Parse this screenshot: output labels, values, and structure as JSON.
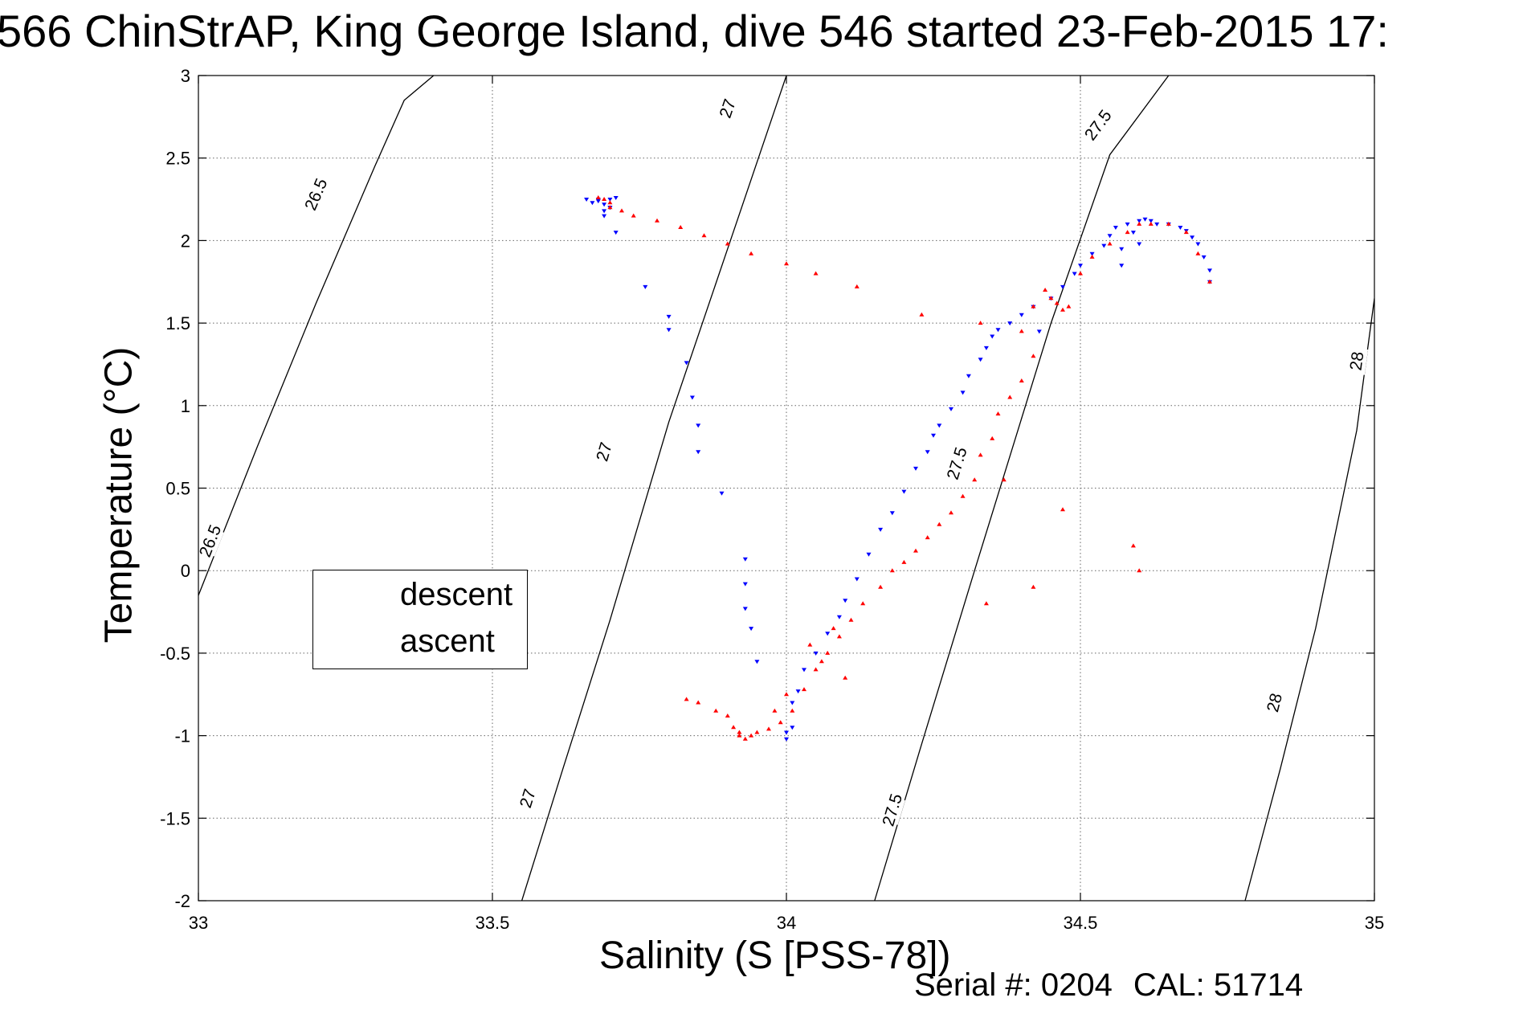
{
  "chart_data": {
    "type": "scatter",
    "title": "566 ChinStrAP, King George Island, dive 546 started 23-Feb-2015 17:",
    "xlabel": "Salinity (S [PSS-78])",
    "ylabel": "Temperature (°C)",
    "xlim": [
      33,
      35
    ],
    "ylim": [
      -2,
      3
    ],
    "xticks": [
      "33",
      "33.5",
      "34",
      "34.5",
      "35"
    ],
    "yticks": [
      "-2",
      "-1.5",
      "-1",
      "-0.5",
      "0",
      "0.5",
      "1",
      "1.5",
      "2",
      "2.5",
      "3"
    ],
    "grid": true,
    "legend_position": "center-left",
    "footer": {
      "serial_label": "Serial #: 0204",
      "cal_label": "CAL: 51714"
    },
    "isopycnals": [
      {
        "label": "26.5",
        "color": "#000000",
        "points": [
          [
            33.0,
            -0.15
          ],
          [
            33.1,
            0.75
          ],
          [
            33.2,
            1.62
          ],
          [
            33.3,
            2.45
          ],
          [
            33.35,
            2.85
          ],
          [
            33.4,
            3.0
          ]
        ],
        "label_positions": [
          [
            33.2,
            2.28
          ],
          [
            33.02,
            0.18
          ]
        ]
      },
      {
        "label": "27",
        "color": "#000000",
        "points": [
          [
            33.55,
            -2.0
          ],
          [
            33.62,
            -1.2
          ],
          [
            33.7,
            -0.3
          ],
          [
            33.8,
            0.9
          ],
          [
            33.9,
            1.95
          ],
          [
            34.0,
            3.0
          ]
        ],
        "label_positions": [
          [
            33.9,
            2.8
          ],
          [
            33.69,
            0.72
          ],
          [
            33.56,
            -1.38
          ]
        ]
      },
      {
        "label": "27.5",
        "color": "#000000",
        "points": [
          [
            34.15,
            -2.0
          ],
          [
            34.23,
            -1.05
          ],
          [
            34.32,
            0.0
          ],
          [
            34.45,
            1.5
          ],
          [
            34.55,
            2.52
          ],
          [
            34.65,
            3.0
          ]
        ],
        "label_positions": [
          [
            34.53,
            2.7
          ],
          [
            34.29,
            0.65
          ],
          [
            34.18,
            -1.45
          ]
        ]
      },
      {
        "label": "28",
        "color": "#000000",
        "points": [
          [
            34.78,
            -2.0
          ],
          [
            34.84,
            -1.2
          ],
          [
            34.9,
            -0.35
          ],
          [
            34.97,
            0.85
          ],
          [
            35.0,
            1.65
          ]
        ],
        "label_positions": [
          [
            34.97,
            1.27
          ],
          [
            34.83,
            -0.8
          ]
        ]
      }
    ],
    "series": [
      {
        "name": "descent",
        "color": "#0000ff",
        "marker": "triangle-down",
        "x": [
          33.66,
          33.68,
          33.69,
          33.7,
          33.69,
          33.68,
          33.71,
          33.67,
          33.7,
          33.69,
          33.71,
          33.7,
          33.76,
          33.8,
          33.8,
          33.83,
          33.84,
          33.85,
          33.85,
          33.89,
          33.93,
          33.93,
          33.93,
          33.94,
          33.95,
          34.0,
          34.0,
          34.01,
          34.01,
          34.02,
          34.03,
          34.05,
          34.07,
          34.09,
          34.1,
          34.12,
          34.14,
          34.16,
          34.18,
          34.2,
          34.22,
          34.24,
          34.25,
          34.26,
          34.28,
          34.3,
          34.31,
          34.33,
          34.34,
          34.35,
          34.36,
          34.38,
          34.4,
          34.42,
          34.43,
          34.45,
          34.47,
          34.49,
          34.5,
          34.52,
          34.54,
          34.55,
          34.56,
          34.57,
          34.57,
          34.58,
          34.59,
          34.6,
          34.6,
          34.61,
          34.62,
          34.63,
          34.65,
          34.67,
          34.68,
          34.69,
          34.7,
          34.71,
          34.72,
          34.72
        ],
        "y": [
          2.25,
          2.25,
          2.22,
          2.2,
          2.18,
          2.24,
          2.26,
          2.23,
          2.2,
          2.15,
          2.05,
          2.25,
          1.72,
          1.54,
          1.46,
          1.26,
          1.05,
          0.88,
          0.72,
          0.47,
          0.07,
          -0.08,
          -0.23,
          -0.35,
          -0.55,
          -0.98,
          -1.02,
          -0.95,
          -0.8,
          -0.73,
          -0.6,
          -0.5,
          -0.38,
          -0.28,
          -0.18,
          -0.05,
          0.1,
          0.25,
          0.35,
          0.48,
          0.62,
          0.72,
          0.82,
          0.88,
          0.98,
          1.08,
          1.18,
          1.28,
          1.35,
          1.42,
          1.46,
          1.5,
          1.55,
          1.6,
          1.45,
          1.65,
          1.72,
          1.8,
          1.85,
          1.92,
          1.97,
          2.03,
          2.08,
          1.85,
          1.95,
          2.1,
          2.05,
          2.12,
          1.98,
          2.13,
          2.12,
          2.1,
          2.1,
          2.08,
          2.06,
          2.02,
          1.98,
          1.9,
          1.82,
          1.75
        ]
      },
      {
        "name": "ascent",
        "color": "#ff0000",
        "marker": "triangle-up",
        "x": [
          33.68,
          33.69,
          33.7,
          33.7,
          33.72,
          33.74,
          33.78,
          33.82,
          33.86,
          33.9,
          33.94,
          34.0,
          34.05,
          34.12,
          34.23,
          34.33,
          34.4,
          34.42,
          34.44,
          34.45,
          34.46,
          34.47,
          34.48,
          34.5,
          34.52,
          34.55,
          34.58,
          34.6,
          34.62,
          34.65,
          34.68,
          34.7,
          34.72,
          34.42,
          34.4,
          34.38,
          34.36,
          34.35,
          34.33,
          34.32,
          34.3,
          34.28,
          34.26,
          34.24,
          34.22,
          34.2,
          34.18,
          34.16,
          34.13,
          34.11,
          34.09,
          34.07,
          34.05,
          34.03,
          34.01,
          33.99,
          33.97,
          33.95,
          33.94,
          33.93,
          33.92,
          33.92,
          33.91,
          33.9,
          33.88,
          33.85,
          33.83,
          34.37,
          34.47,
          34.59,
          34.6,
          34.42,
          34.34,
          34.08,
          34.04,
          34.06,
          34.1,
          34.0,
          33.98
        ],
        "y": [
          2.26,
          2.25,
          2.23,
          2.2,
          2.18,
          2.15,
          2.12,
          2.08,
          2.03,
          1.98,
          1.92,
          1.86,
          1.8,
          1.72,
          1.55,
          1.5,
          1.45,
          1.6,
          1.7,
          1.65,
          1.62,
          1.58,
          1.6,
          1.8,
          1.9,
          1.98,
          2.05,
          2.1,
          2.1,
          2.1,
          2.05,
          1.92,
          1.75,
          1.3,
          1.15,
          1.05,
          0.95,
          0.8,
          0.7,
          0.55,
          0.45,
          0.35,
          0.28,
          0.2,
          0.12,
          0.05,
          0.0,
          -0.1,
          -0.2,
          -0.3,
          -0.4,
          -0.5,
          -0.6,
          -0.72,
          -0.85,
          -0.92,
          -0.96,
          -0.98,
          -1.0,
          -1.02,
          -1.0,
          -0.98,
          -0.95,
          -0.88,
          -0.85,
          -0.8,
          -0.78,
          0.55,
          0.37,
          0.15,
          0.0,
          -0.1,
          -0.2,
          -0.35,
          -0.45,
          -0.55,
          -0.65,
          -0.75,
          -0.85
        ]
      }
    ]
  }
}
